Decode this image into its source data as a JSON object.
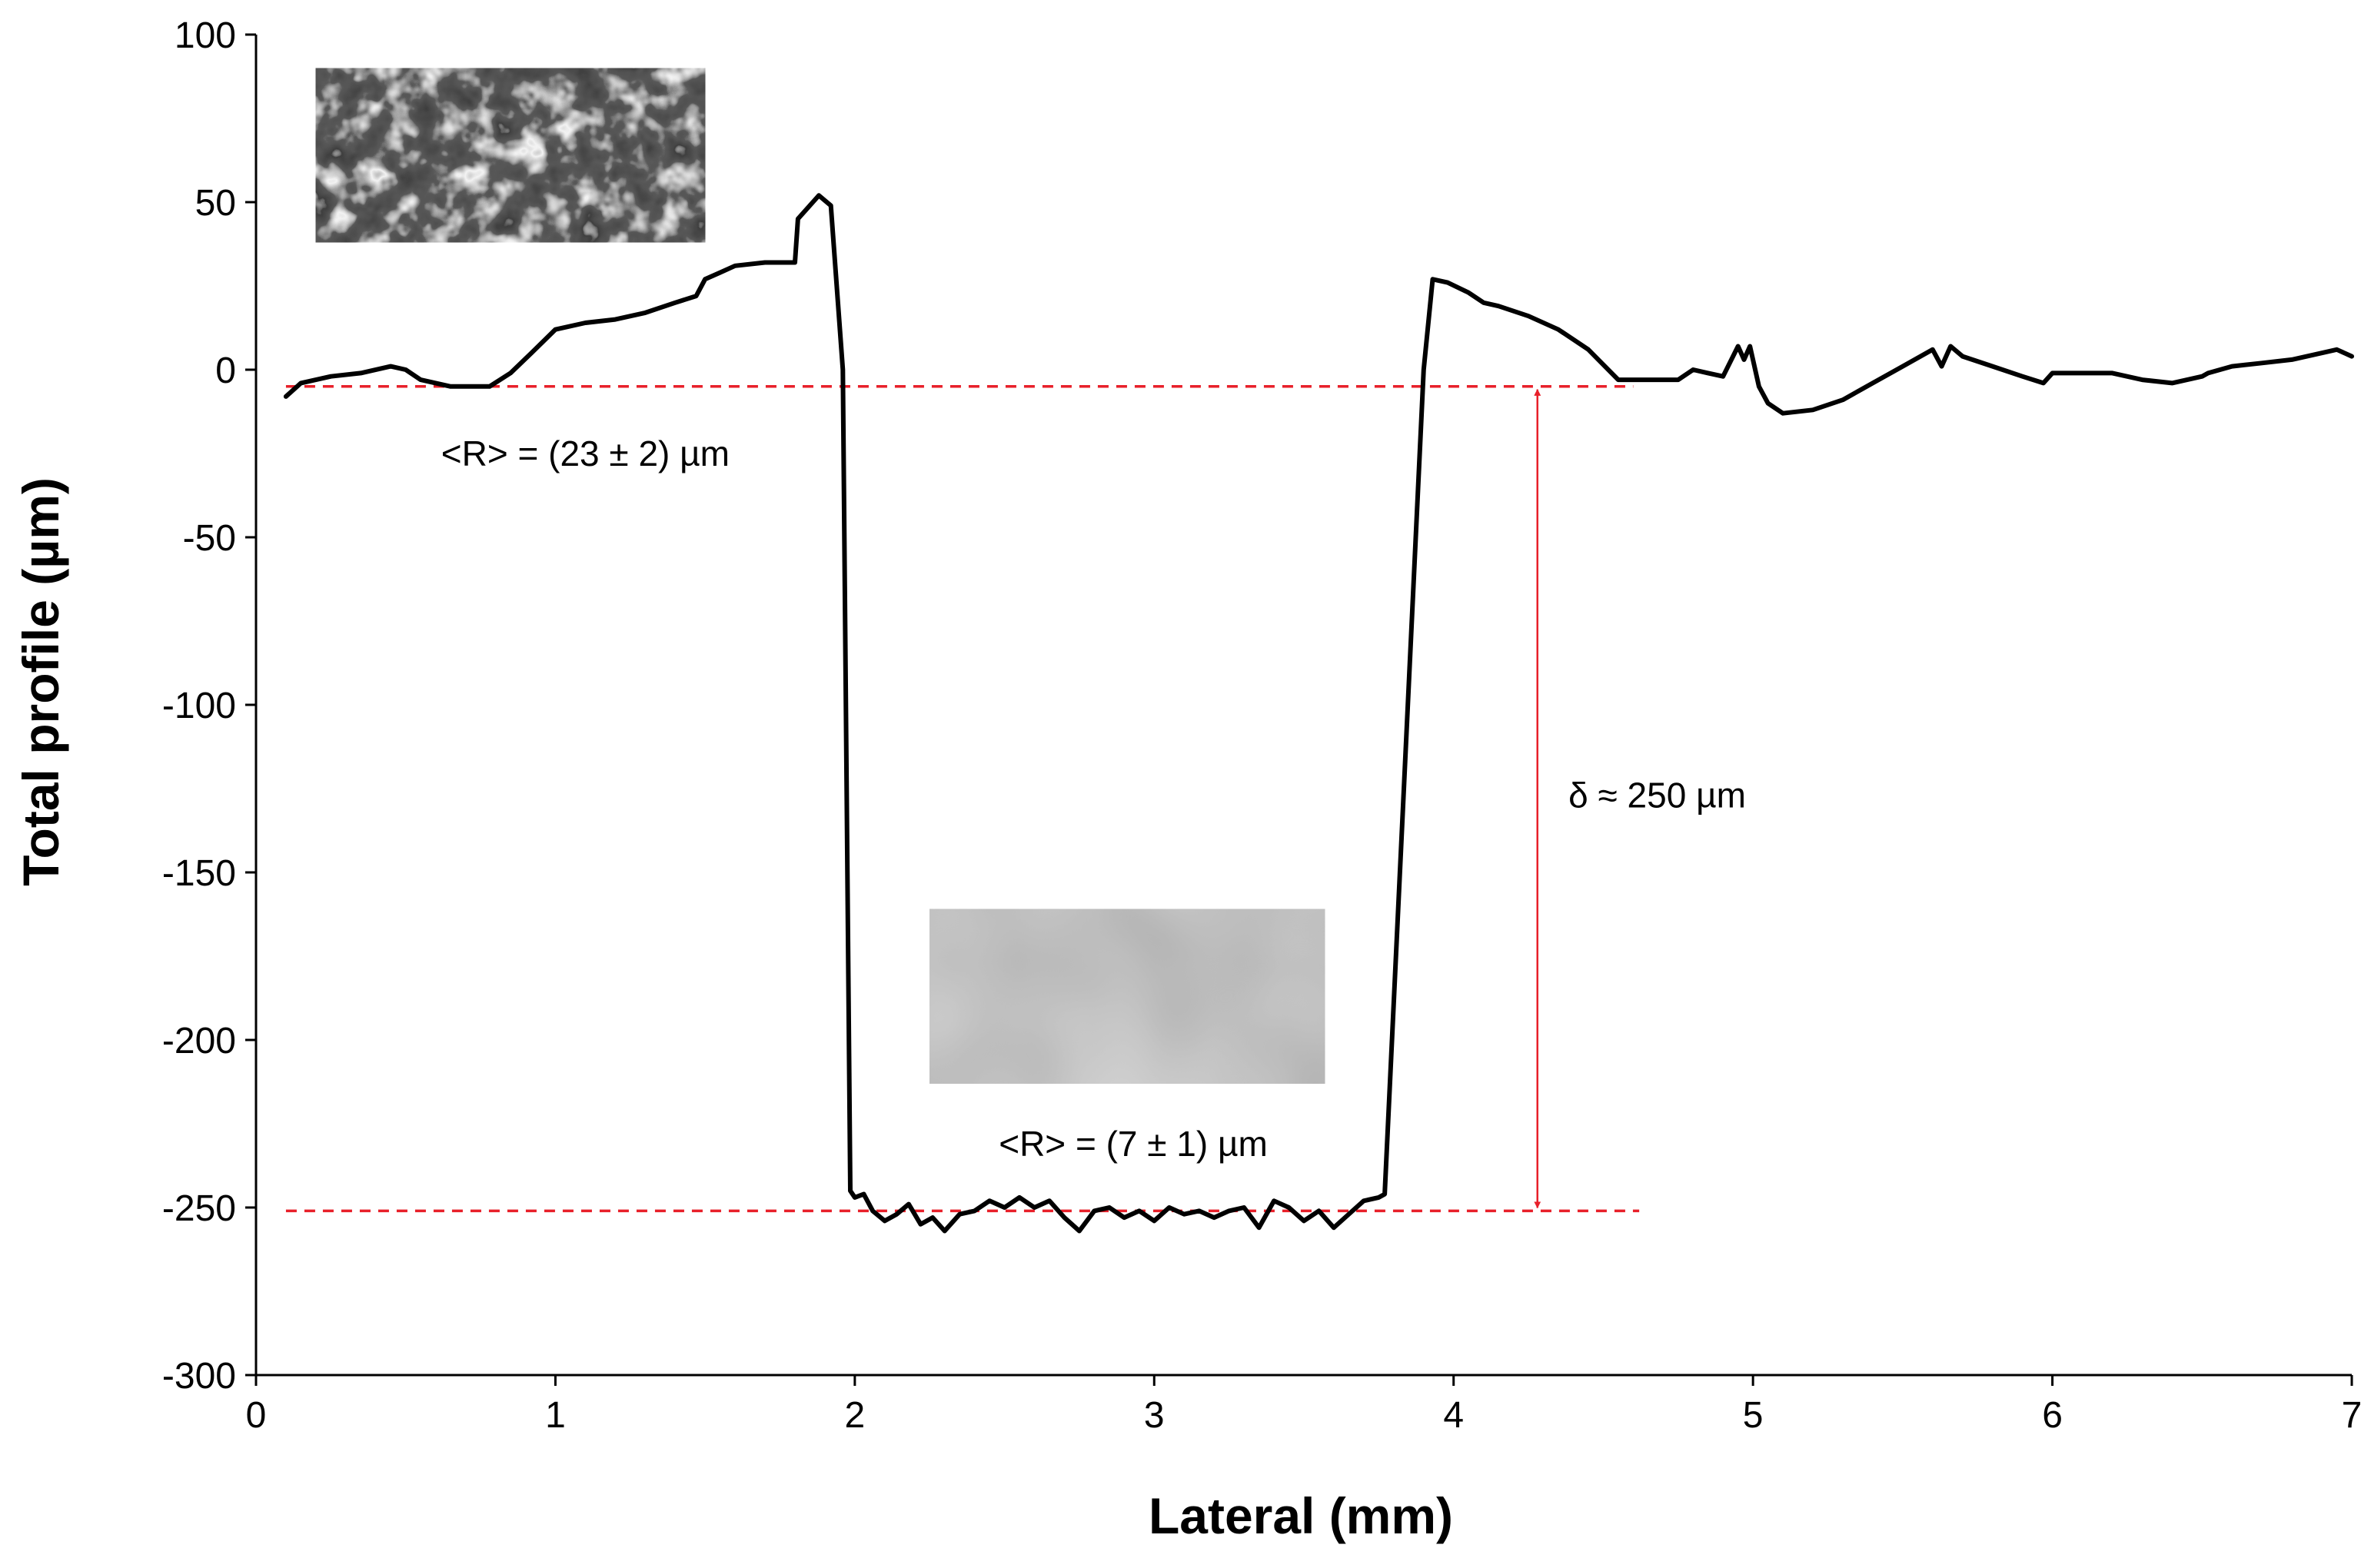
{
  "chart_data": {
    "type": "line",
    "title": "",
    "xlabel": "Lateral (mm)",
    "ylabel": "Total profile (µm)",
    "xlim": [
      0,
      7
    ],
    "ylim": [
      -300,
      100
    ],
    "xticks": [
      0,
      1,
      2,
      3,
      4,
      5,
      6,
      7
    ],
    "yticks": [
      -300,
      -250,
      -200,
      -150,
      -100,
      -50,
      0,
      50,
      100
    ],
    "grid": false,
    "legend": "none",
    "series": [
      {
        "color": "#000000",
        "points": [
          [
            0.1,
            -8
          ],
          [
            0.15,
            -4
          ],
          [
            0.25,
            -2
          ],
          [
            0.35,
            -1
          ],
          [
            0.45,
            1
          ],
          [
            0.5,
            0
          ],
          [
            0.55,
            -3
          ],
          [
            0.65,
            -5
          ],
          [
            0.78,
            -5
          ],
          [
            0.85,
            -1
          ],
          [
            0.92,
            5
          ],
          [
            1.0,
            12
          ],
          [
            1.1,
            14
          ],
          [
            1.2,
            15
          ],
          [
            1.3,
            17
          ],
          [
            1.4,
            20
          ],
          [
            1.47,
            22
          ],
          [
            1.5,
            27
          ],
          [
            1.55,
            29
          ],
          [
            1.6,
            31
          ],
          [
            1.7,
            32
          ],
          [
            1.8,
            32
          ],
          [
            1.81,
            45
          ],
          [
            1.85,
            49
          ],
          [
            1.88,
            52
          ],
          [
            1.92,
            49
          ],
          [
            1.96,
            0
          ],
          [
            1.985,
            -245
          ],
          [
            2.0,
            -247
          ],
          [
            2.03,
            -246
          ],
          [
            2.06,
            -251
          ],
          [
            2.1,
            -254
          ],
          [
            2.14,
            -252
          ],
          [
            2.18,
            -249
          ],
          [
            2.22,
            -255
          ],
          [
            2.26,
            -253
          ],
          [
            2.3,
            -257
          ],
          [
            2.35,
            -252
          ],
          [
            2.4,
            -251
          ],
          [
            2.45,
            -248
          ],
          [
            2.5,
            -250
          ],
          [
            2.55,
            -247
          ],
          [
            2.6,
            -250
          ],
          [
            2.65,
            -248
          ],
          [
            2.7,
            -253
          ],
          [
            2.75,
            -257
          ],
          [
            2.8,
            -251
          ],
          [
            2.85,
            -250
          ],
          [
            2.9,
            -253
          ],
          [
            2.95,
            -251
          ],
          [
            3.0,
            -254
          ],
          [
            3.05,
            -250
          ],
          [
            3.1,
            -252
          ],
          [
            3.15,
            -251
          ],
          [
            3.2,
            -253
          ],
          [
            3.25,
            -251
          ],
          [
            3.3,
            -250
          ],
          [
            3.35,
            -256
          ],
          [
            3.4,
            -248
          ],
          [
            3.45,
            -250
          ],
          [
            3.5,
            -254
          ],
          [
            3.55,
            -251
          ],
          [
            3.6,
            -256
          ],
          [
            3.65,
            -252
          ],
          [
            3.7,
            -248
          ],
          [
            3.75,
            -247
          ],
          [
            3.77,
            -246
          ],
          [
            3.9,
            0
          ],
          [
            3.93,
            27
          ],
          [
            3.98,
            26
          ],
          [
            4.05,
            23
          ],
          [
            4.1,
            20
          ],
          [
            4.15,
            19
          ],
          [
            4.25,
            16
          ],
          [
            4.35,
            12
          ],
          [
            4.45,
            6
          ],
          [
            4.55,
            -3
          ],
          [
            4.65,
            -3
          ],
          [
            4.75,
            -3
          ],
          [
            4.8,
            0
          ],
          [
            4.85,
            -1
          ],
          [
            4.9,
            -2
          ],
          [
            4.95,
            7
          ],
          [
            4.97,
            3
          ],
          [
            4.99,
            7
          ],
          [
            5.02,
            -5
          ],
          [
            5.05,
            -10
          ],
          [
            5.1,
            -13
          ],
          [
            5.2,
            -12
          ],
          [
            5.3,
            -9
          ],
          [
            5.4,
            -4
          ],
          [
            5.5,
            1
          ],
          [
            5.6,
            6
          ],
          [
            5.63,
            1
          ],
          [
            5.66,
            7
          ],
          [
            5.7,
            4
          ],
          [
            5.8,
            1
          ],
          [
            5.9,
            -2
          ],
          [
            5.97,
            -4
          ],
          [
            6.0,
            -1
          ],
          [
            6.1,
            -1
          ],
          [
            6.2,
            -1
          ],
          [
            6.3,
            -3
          ],
          [
            6.4,
            -4
          ],
          [
            6.5,
            -2
          ],
          [
            6.52,
            -1
          ],
          [
            6.6,
            1
          ],
          [
            6.7,
            2
          ],
          [
            6.8,
            3
          ],
          [
            6.9,
            5
          ],
          [
            6.95,
            6
          ],
          [
            7.0,
            4
          ]
        ]
      }
    ],
    "reference_lines": [
      {
        "y": -5,
        "x_range": [
          0.1,
          4.6
        ],
        "color": "#e8202a",
        "style": "dashed"
      },
      {
        "y": -251,
        "x_range": [
          0.1,
          4.62
        ],
        "color": "#e8202a",
        "style": "dashed"
      }
    ],
    "arrow": {
      "x": 4.28,
      "from_y": -5,
      "to_y": -251,
      "color": "#e8202a"
    },
    "annotations": [
      {
        "id": "r-top",
        "text": "<R> = (23 ± 2) µm",
        "x": 1.1,
        "y": -25
      },
      {
        "id": "r-bottom",
        "text": "<R> = (7 ± 1) µm",
        "x": 2.93,
        "y": -231
      },
      {
        "id": "delta",
        "text": "δ ≈ 250 µm",
        "x": 4.68,
        "y": -127
      }
    ],
    "insets": [
      {
        "id": "inset-rough-surface",
        "x_range": [
          0.2,
          1.5
        ],
        "y_range": [
          38,
          90
        ],
        "tone": "dark"
      },
      {
        "id": "inset-smooth-surface",
        "x_range": [
          2.25,
          3.57
        ],
        "y_range": [
          -213,
          -161
        ],
        "tone": "grey"
      }
    ]
  }
}
